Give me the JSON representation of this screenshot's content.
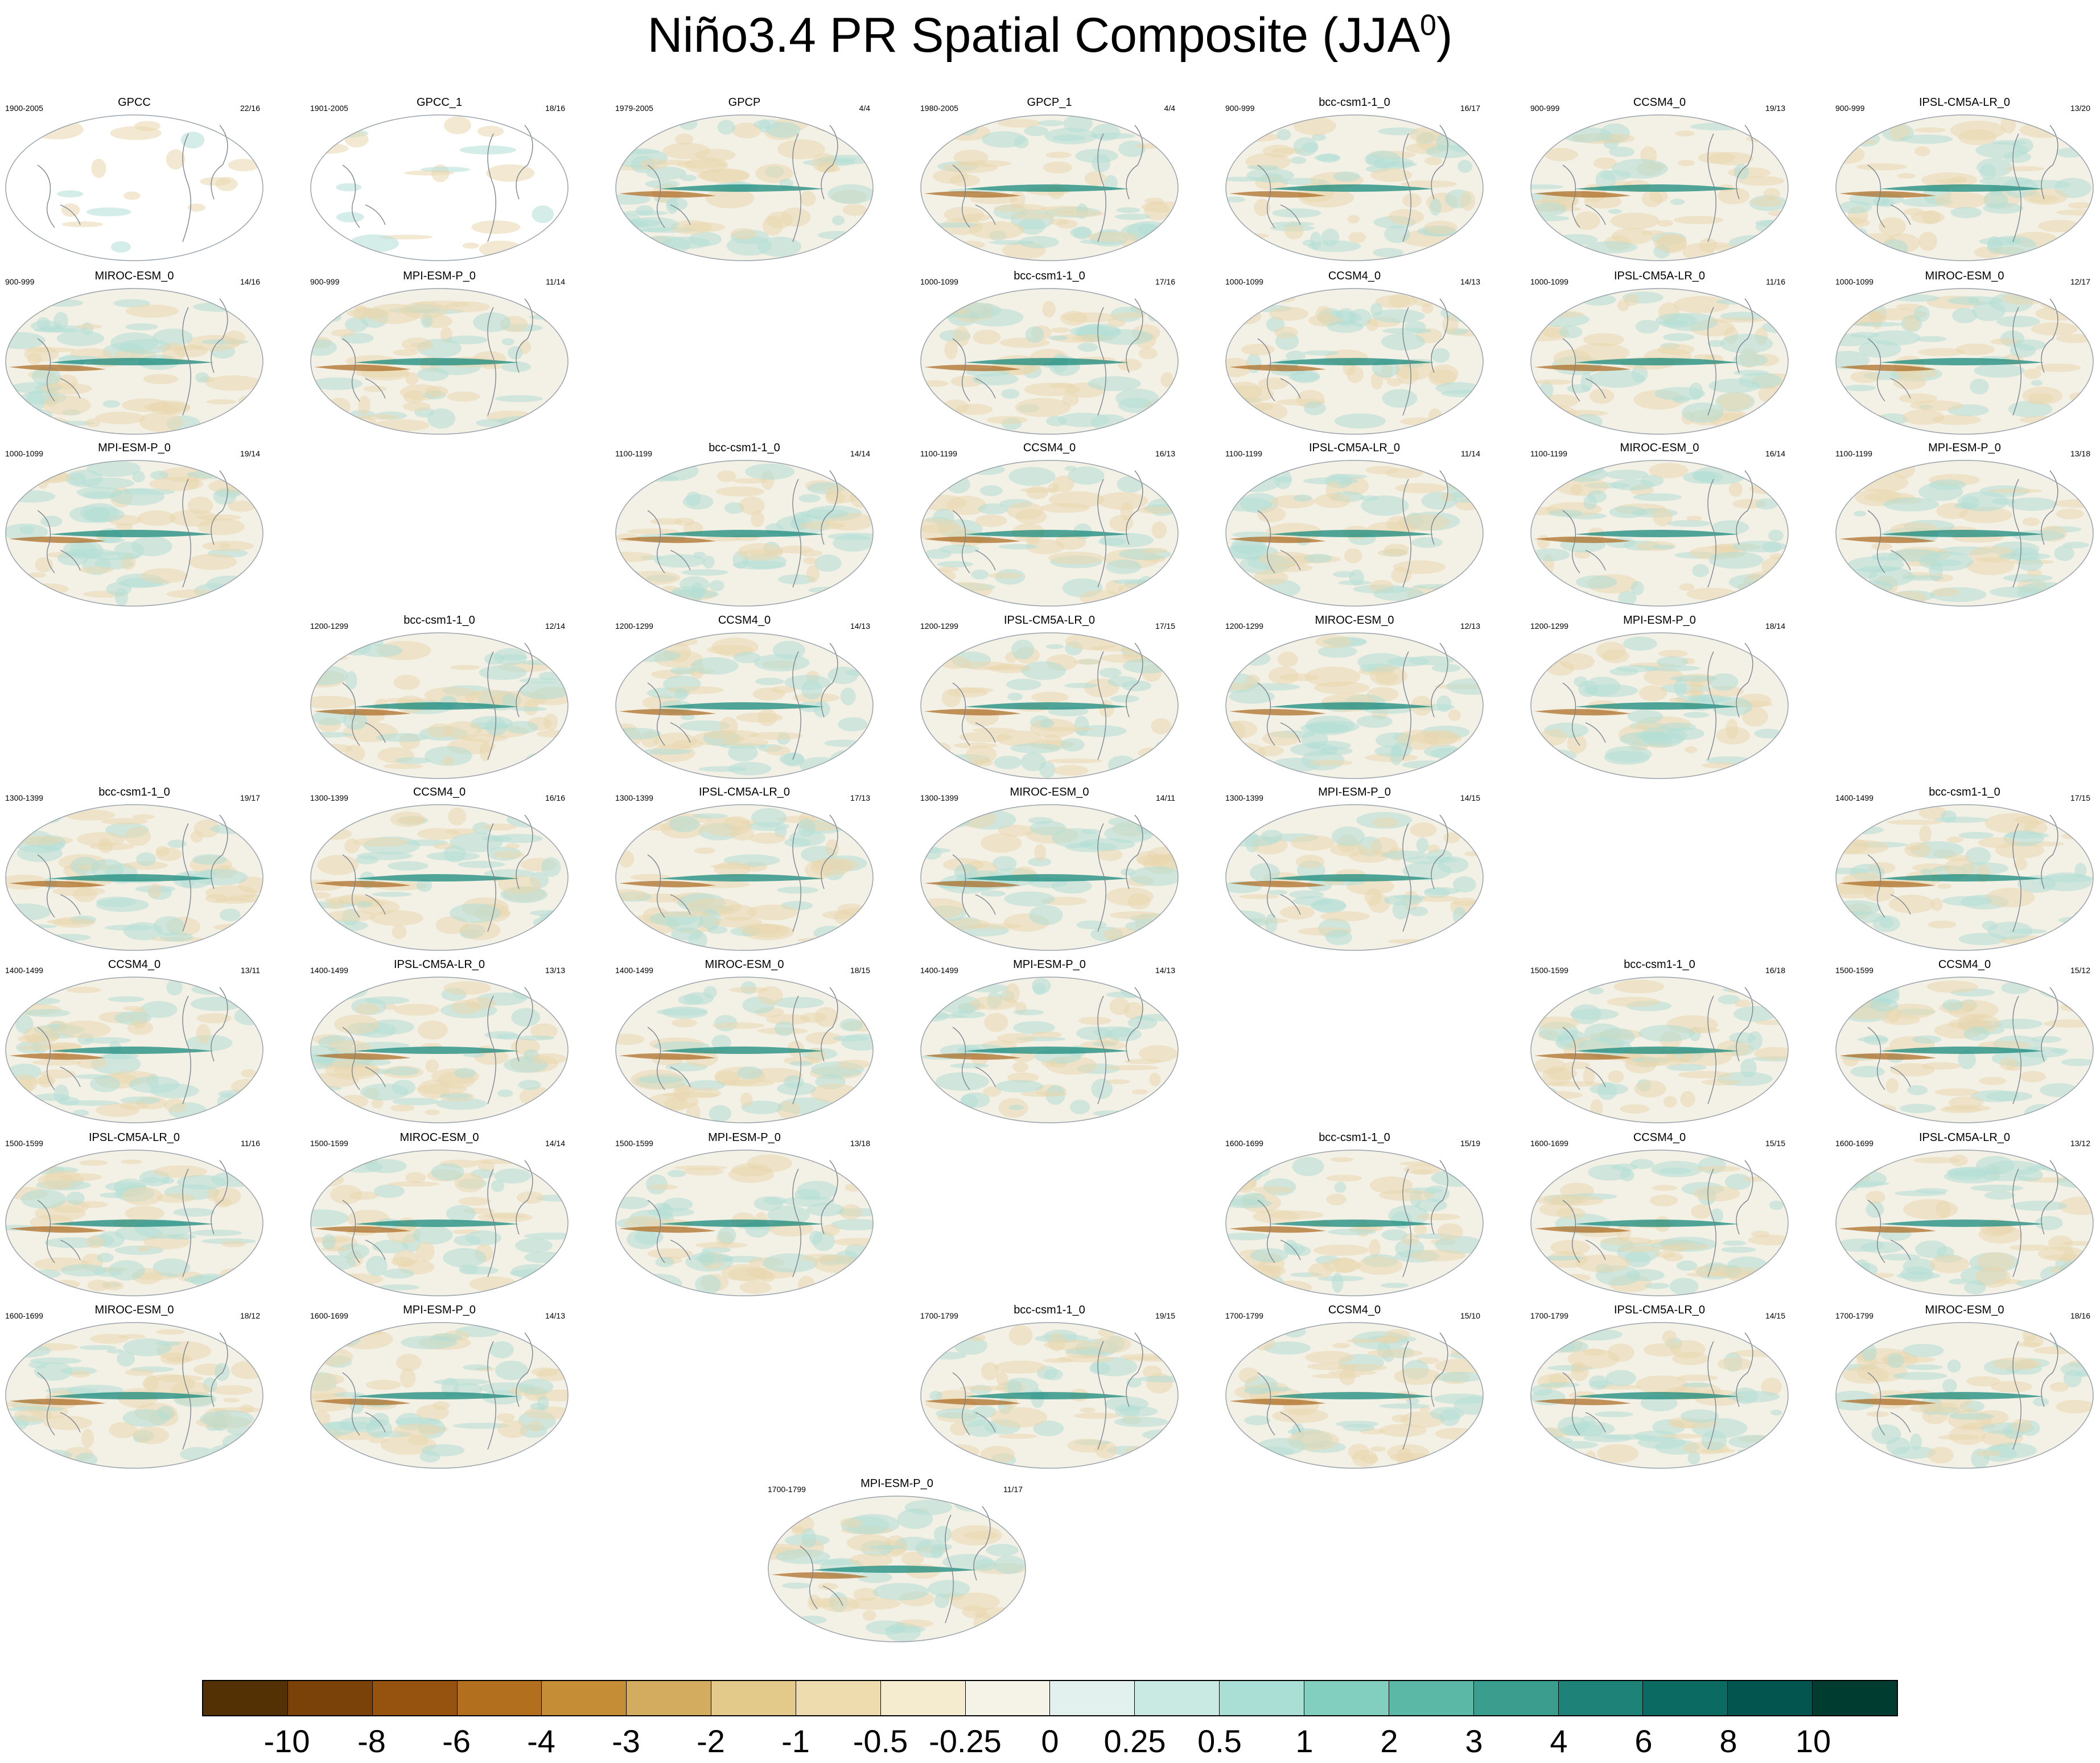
{
  "title": {
    "main": "Niño3.4 PR Spatial Composite (JJA",
    "sup": "0",
    "end": ")"
  },
  "panels": [
    {
      "name": "GPCC",
      "period": "1900-2005",
      "count": "22/16",
      "row": 0,
      "col": 0,
      "obs": true
    },
    {
      "name": "GPCC_1",
      "period": "1901-2005",
      "count": "18/16",
      "row": 0,
      "col": 1,
      "obs": true
    },
    {
      "name": "GPCP",
      "period": "1979-2005",
      "count": "4/4",
      "row": 0,
      "col": 2
    },
    {
      "name": "GPCP_1",
      "period": "1980-2005",
      "count": "4/4",
      "row": 0,
      "col": 3
    },
    {
      "name": "bcc-csm1-1_0",
      "period": "900-999",
      "count": "16/17",
      "row": 0,
      "col": 4
    },
    {
      "name": "CCSM4_0",
      "period": "900-999",
      "count": "19/13",
      "row": 0,
      "col": 5
    },
    {
      "name": "IPSL-CM5A-LR_0",
      "period": "900-999",
      "count": "13/20",
      "row": 0,
      "col": 6
    },
    {
      "name": "MIROC-ESM_0",
      "period": "900-999",
      "count": "14/16",
      "row": 1,
      "col": 0
    },
    {
      "name": "MPI-ESM-P_0",
      "period": "900-999",
      "count": "11/14",
      "row": 1,
      "col": 1
    },
    {
      "name": "bcc-csm1-1_0",
      "period": "1000-1099",
      "count": "17/16",
      "row": 1,
      "col": 3
    },
    {
      "name": "CCSM4_0",
      "period": "1000-1099",
      "count": "14/13",
      "row": 1,
      "col": 4
    },
    {
      "name": "IPSL-CM5A-LR_0",
      "period": "1000-1099",
      "count": "11/16",
      "row": 1,
      "col": 5
    },
    {
      "name": "MIROC-ESM_0",
      "period": "1000-1099",
      "count": "12/17",
      "row": 1,
      "col": 6
    },
    {
      "name": "MPI-ESM-P_0",
      "period": "1000-1099",
      "count": "19/14",
      "row": 2,
      "col": 0
    },
    {
      "name": "bcc-csm1-1_0",
      "period": "1100-1199",
      "count": "14/14",
      "row": 2,
      "col": 2
    },
    {
      "name": "CCSM4_0",
      "period": "1100-1199",
      "count": "16/13",
      "row": 2,
      "col": 3
    },
    {
      "name": "IPSL-CM5A-LR_0",
      "period": "1100-1199",
      "count": "11/14",
      "row": 2,
      "col": 4
    },
    {
      "name": "MIROC-ESM_0",
      "period": "1100-1199",
      "count": "16/14",
      "row": 2,
      "col": 5
    },
    {
      "name": "MPI-ESM-P_0",
      "period": "1100-1199",
      "count": "13/18",
      "row": 2,
      "col": 6
    },
    {
      "name": "bcc-csm1-1_0",
      "period": "1200-1299",
      "count": "12/14",
      "row": 3,
      "col": 1
    },
    {
      "name": "CCSM4_0",
      "period": "1200-1299",
      "count": "14/13",
      "row": 3,
      "col": 2
    },
    {
      "name": "IPSL-CM5A-LR_0",
      "period": "1200-1299",
      "count": "17/15",
      "row": 3,
      "col": 3
    },
    {
      "name": "MIROC-ESM_0",
      "period": "1200-1299",
      "count": "12/13",
      "row": 3,
      "col": 4
    },
    {
      "name": "MPI-ESM-P_0",
      "period": "1200-1299",
      "count": "18/14",
      "row": 3,
      "col": 5
    },
    {
      "name": "bcc-csm1-1_0",
      "period": "1300-1399",
      "count": "19/17",
      "row": 4,
      "col": 0
    },
    {
      "name": "CCSM4_0",
      "period": "1300-1399",
      "count": "16/16",
      "row": 4,
      "col": 1
    },
    {
      "name": "IPSL-CM5A-LR_0",
      "period": "1300-1399",
      "count": "17/13",
      "row": 4,
      "col": 2
    },
    {
      "name": "MIROC-ESM_0",
      "period": "1300-1399",
      "count": "14/11",
      "row": 4,
      "col": 3
    },
    {
      "name": "MPI-ESM-P_0",
      "period": "1300-1399",
      "count": "14/15",
      "row": 4,
      "col": 4
    },
    {
      "name": "bcc-csm1-1_0",
      "period": "1400-1499",
      "count": "17/15",
      "row": 4,
      "col": 6
    },
    {
      "name": "CCSM4_0",
      "period": "1400-1499",
      "count": "13/11",
      "row": 5,
      "col": 0
    },
    {
      "name": "IPSL-CM5A-LR_0",
      "period": "1400-1499",
      "count": "13/13",
      "row": 5,
      "col": 1
    },
    {
      "name": "MIROC-ESM_0",
      "period": "1400-1499",
      "count": "18/15",
      "row": 5,
      "col": 2
    },
    {
      "name": "MPI-ESM-P_0",
      "period": "1400-1499",
      "count": "14/13",
      "row": 5,
      "col": 3
    },
    {
      "name": "bcc-csm1-1_0",
      "period": "1500-1599",
      "count": "16/18",
      "row": 5,
      "col": 5
    },
    {
      "name": "CCSM4_0",
      "period": "1500-1599",
      "count": "15/12",
      "row": 5,
      "col": 6
    },
    {
      "name": "IPSL-CM5A-LR_0",
      "period": "1500-1599",
      "count": "11/16",
      "row": 6,
      "col": 0
    },
    {
      "name": "MIROC-ESM_0",
      "period": "1500-1599",
      "count": "14/14",
      "row": 6,
      "col": 1
    },
    {
      "name": "MPI-ESM-P_0",
      "period": "1500-1599",
      "count": "13/18",
      "row": 6,
      "col": 2
    },
    {
      "name": "bcc-csm1-1_0",
      "period": "1600-1699",
      "count": "15/19",
      "row": 6,
      "col": 4
    },
    {
      "name": "CCSM4_0",
      "period": "1600-1699",
      "count": "15/15",
      "row": 6,
      "col": 5
    },
    {
      "name": "IPSL-CM5A-LR_0",
      "period": "1600-1699",
      "count": "13/12",
      "row": 6,
      "col": 6
    },
    {
      "name": "MIROC-ESM_0",
      "period": "1600-1699",
      "count": "18/12",
      "row": 7,
      "col": 0
    },
    {
      "name": "MPI-ESM-P_0",
      "period": "1600-1699",
      "count": "14/13",
      "row": 7,
      "col": 1
    },
    {
      "name": "bcc-csm1-1_0",
      "period": "1700-1799",
      "count": "19/15",
      "row": 7,
      "col": 3
    },
    {
      "name": "CCSM4_0",
      "period": "1700-1799",
      "count": "15/10",
      "row": 7,
      "col": 4
    },
    {
      "name": "IPSL-CM5A-LR_0",
      "period": "1700-1799",
      "count": "14/15",
      "row": 7,
      "col": 5
    },
    {
      "name": "MIROC-ESM_0",
      "period": "1700-1799",
      "count": "18/16",
      "row": 7,
      "col": 6
    },
    {
      "name": "MPI-ESM-P_0",
      "period": "1700-1799",
      "count": "11/17",
      "row": 8,
      "col": 2.5
    }
  ],
  "colorbar": {
    "colors": [
      "#543005",
      "#7a4209",
      "#965310",
      "#b2701f",
      "#c58e36",
      "#d3ac60",
      "#e3c98a",
      "#efdcae",
      "#f5ebcf",
      "#f5f2e8",
      "#e3f1ee",
      "#c9e9e3",
      "#a9dfd4",
      "#83cfbf",
      "#5bb8a6",
      "#3a9d8e",
      "#1f8279",
      "#0b6a62",
      "#035650",
      "#003c30"
    ],
    "labels": [
      "-10",
      "-8",
      "-6",
      "-4",
      "-3",
      "-2",
      "-1",
      "-0.5",
      "-0.25",
      "0",
      "0.25",
      "0.5",
      "1",
      "2",
      "3",
      "4",
      "6",
      "8",
      "10"
    ]
  }
}
